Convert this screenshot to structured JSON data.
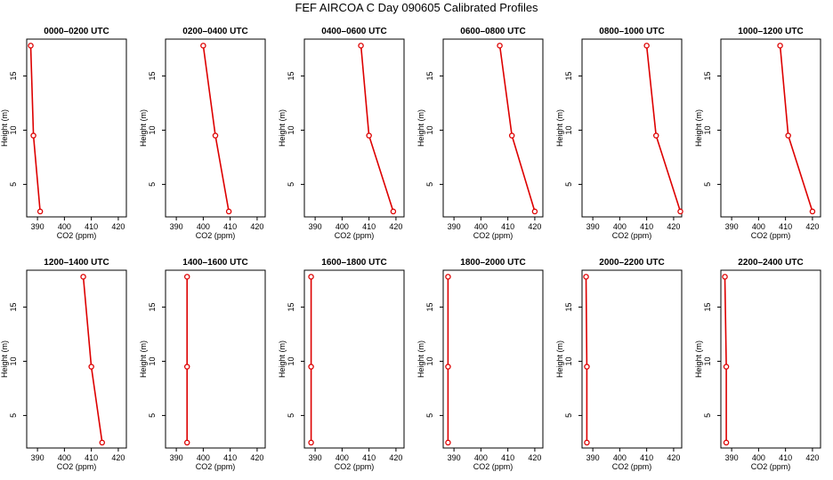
{
  "figure": {
    "title": "FEF AIRCOA C  Day 090605  Calibrated Profiles"
  },
  "style": {
    "line_color": "#dd0000",
    "point_color": "#dd0000",
    "axis_color": "#000000"
  },
  "chart_data": [
    {
      "type": "line",
      "title": "0000–0200 UTC",
      "xlabel": "CO2 (ppm)",
      "ylabel": "Height (m)",
      "xlim": [
        386,
        423
      ],
      "ylim": [
        2,
        18.4
      ],
      "xticks": [
        390,
        400,
        410,
        420
      ],
      "yticks": [
        5,
        10,
        15
      ],
      "series": [
        {
          "x": [
            391,
            388.5,
            387.5
          ],
          "y": [
            2.5,
            9.5,
            17.8
          ]
        }
      ]
    },
    {
      "type": "line",
      "title": "0200–0400 UTC",
      "xlabel": "CO2 (ppm)",
      "ylabel": "Height (m)",
      "xlim": [
        386,
        423
      ],
      "ylim": [
        2,
        18.4
      ],
      "xticks": [
        390,
        400,
        410,
        420
      ],
      "yticks": [
        5,
        10,
        15
      ],
      "series": [
        {
          "x": [
            409.5,
            404.5,
            400
          ],
          "y": [
            2.5,
            9.5,
            17.8
          ]
        }
      ]
    },
    {
      "type": "line",
      "title": "0400–0600 UTC",
      "xlabel": "CO2 (ppm)",
      "ylabel": "Height (m)",
      "xlim": [
        386,
        423
      ],
      "ylim": [
        2,
        18.4
      ],
      "xticks": [
        390,
        400,
        410,
        420
      ],
      "yticks": [
        5,
        10,
        15
      ],
      "series": [
        {
          "x": [
            419,
            410,
            407
          ],
          "y": [
            2.5,
            9.5,
            17.8
          ]
        }
      ]
    },
    {
      "type": "line",
      "title": "0600–0800 UTC",
      "xlabel": "CO2 (ppm)",
      "ylabel": "Height (m)",
      "xlim": [
        386,
        423
      ],
      "ylim": [
        2,
        18.4
      ],
      "xticks": [
        390,
        400,
        410,
        420
      ],
      "yticks": [
        5,
        10,
        15
      ],
      "series": [
        {
          "x": [
            420,
            411.5,
            407
          ],
          "y": [
            2.5,
            9.5,
            17.8
          ]
        }
      ]
    },
    {
      "type": "line",
      "title": "0800–1000 UTC",
      "xlabel": "CO2 (ppm)",
      "ylabel": "Height (m)",
      "xlim": [
        386,
        423
      ],
      "ylim": [
        2,
        18.4
      ],
      "xticks": [
        390,
        400,
        410,
        420
      ],
      "yticks": [
        5,
        10,
        15
      ],
      "series": [
        {
          "x": [
            422.5,
            413.5,
            410
          ],
          "y": [
            2.5,
            9.5,
            17.8
          ]
        }
      ]
    },
    {
      "type": "line",
      "title": "1000–1200 UTC",
      "xlabel": "CO2 (ppm)",
      "ylabel": "Height (m)",
      "xlim": [
        386,
        423
      ],
      "ylim": [
        2,
        18.4
      ],
      "xticks": [
        390,
        400,
        410,
        420
      ],
      "yticks": [
        5,
        10,
        15
      ],
      "series": [
        {
          "x": [
            420,
            411,
            408
          ],
          "y": [
            2.5,
            9.5,
            17.8
          ]
        }
      ]
    },
    {
      "type": "line",
      "title": "1200–1400 UTC",
      "xlabel": "CO2 (ppm)",
      "ylabel": "Height (m)",
      "xlim": [
        386,
        423
      ],
      "ylim": [
        2,
        18.4
      ],
      "xticks": [
        390,
        400,
        410,
        420
      ],
      "yticks": [
        5,
        10,
        15
      ],
      "series": [
        {
          "x": [
            414,
            410,
            407
          ],
          "y": [
            2.5,
            9.5,
            17.8
          ]
        }
      ]
    },
    {
      "type": "line",
      "title": "1400–1600 UTC",
      "xlabel": "CO2 (ppm)",
      "ylabel": "Height (m)",
      "xlim": [
        386,
        423
      ],
      "ylim": [
        2,
        18.4
      ],
      "xticks": [
        390,
        400,
        410,
        420
      ],
      "yticks": [
        5,
        10,
        15
      ],
      "series": [
        {
          "x": [
            394,
            394,
            394
          ],
          "y": [
            2.5,
            9.5,
            17.8
          ]
        }
      ]
    },
    {
      "type": "line",
      "title": "1600–1800 UTC",
      "xlabel": "CO2 (ppm)",
      "ylabel": "Height (m)",
      "xlim": [
        386,
        423
      ],
      "ylim": [
        2,
        18.4
      ],
      "xticks": [
        390,
        400,
        410,
        420
      ],
      "yticks": [
        5,
        10,
        15
      ],
      "series": [
        {
          "x": [
            388.5,
            388.5,
            388.5
          ],
          "y": [
            2.5,
            9.5,
            17.8
          ]
        }
      ]
    },
    {
      "type": "line",
      "title": "1800–2000 UTC",
      "xlabel": "CO2 (ppm)",
      "ylabel": "Height (m)",
      "xlim": [
        386,
        423
      ],
      "ylim": [
        2,
        18.4
      ],
      "xticks": [
        390,
        400,
        410,
        420
      ],
      "yticks": [
        5,
        10,
        15
      ],
      "series": [
        {
          "x": [
            387.8,
            387.8,
            387.8
          ],
          "y": [
            2.5,
            9.5,
            17.8
          ]
        }
      ]
    },
    {
      "type": "line",
      "title": "2000–2200 UTC",
      "xlabel": "CO2 (ppm)",
      "ylabel": "Height (m)",
      "xlim": [
        386,
        423
      ],
      "ylim": [
        2,
        18.4
      ],
      "xticks": [
        390,
        400,
        410,
        420
      ],
      "yticks": [
        5,
        10,
        15
      ],
      "series": [
        {
          "x": [
            387.8,
            387.8,
            387.5
          ],
          "y": [
            2.5,
            9.5,
            17.8
          ]
        }
      ]
    },
    {
      "type": "line",
      "title": "2200–2400 UTC",
      "xlabel": "CO2 (ppm)",
      "ylabel": "Height (m)",
      "xlim": [
        386,
        423
      ],
      "ylim": [
        2,
        18.4
      ],
      "xticks": [
        390,
        400,
        410,
        420
      ],
      "yticks": [
        5,
        10,
        15
      ],
      "series": [
        {
          "x": [
            388,
            388,
            387.5
          ],
          "y": [
            2.5,
            9.5,
            17.8
          ]
        }
      ]
    }
  ]
}
